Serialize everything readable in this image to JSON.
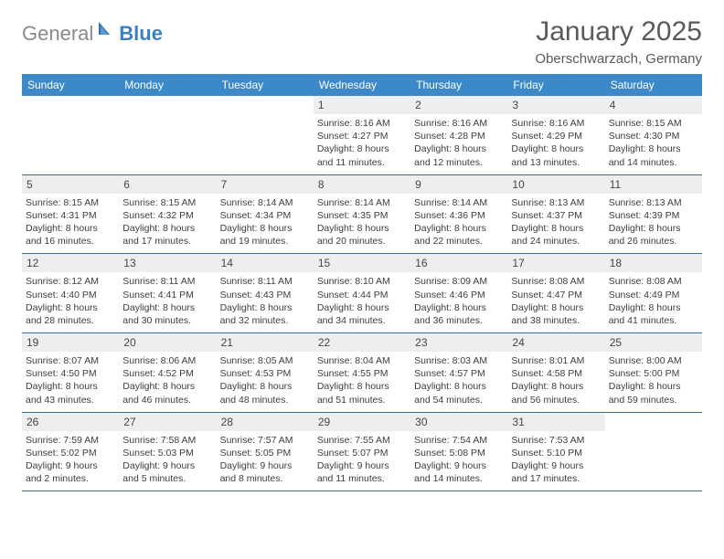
{
  "logo": {
    "text1": "General",
    "text2": "Blue"
  },
  "title": "January 2025",
  "subtitle": "Oberschwarzach, Germany",
  "colors": {
    "header_bg": "#3b89c9",
    "daynum_bg": "#eceeef",
    "row_border": "#3b6ea0",
    "logo_gray": "#8a8a8a",
    "logo_blue": "#3b7fc4"
  },
  "weekdays": [
    "Sunday",
    "Monday",
    "Tuesday",
    "Wednesday",
    "Thursday",
    "Friday",
    "Saturday"
  ],
  "weeks": [
    [
      {
        "n": "",
        "sr": "",
        "ss": "",
        "dl1": "",
        "dl2": ""
      },
      {
        "n": "",
        "sr": "",
        "ss": "",
        "dl1": "",
        "dl2": ""
      },
      {
        "n": "",
        "sr": "",
        "ss": "",
        "dl1": "",
        "dl2": ""
      },
      {
        "n": "1",
        "sr": "Sunrise: 8:16 AM",
        "ss": "Sunset: 4:27 PM",
        "dl1": "Daylight: 8 hours",
        "dl2": "and 11 minutes."
      },
      {
        "n": "2",
        "sr": "Sunrise: 8:16 AM",
        "ss": "Sunset: 4:28 PM",
        "dl1": "Daylight: 8 hours",
        "dl2": "and 12 minutes."
      },
      {
        "n": "3",
        "sr": "Sunrise: 8:16 AM",
        "ss": "Sunset: 4:29 PM",
        "dl1": "Daylight: 8 hours",
        "dl2": "and 13 minutes."
      },
      {
        "n": "4",
        "sr": "Sunrise: 8:15 AM",
        "ss": "Sunset: 4:30 PM",
        "dl1": "Daylight: 8 hours",
        "dl2": "and 14 minutes."
      }
    ],
    [
      {
        "n": "5",
        "sr": "Sunrise: 8:15 AM",
        "ss": "Sunset: 4:31 PM",
        "dl1": "Daylight: 8 hours",
        "dl2": "and 16 minutes."
      },
      {
        "n": "6",
        "sr": "Sunrise: 8:15 AM",
        "ss": "Sunset: 4:32 PM",
        "dl1": "Daylight: 8 hours",
        "dl2": "and 17 minutes."
      },
      {
        "n": "7",
        "sr": "Sunrise: 8:14 AM",
        "ss": "Sunset: 4:34 PM",
        "dl1": "Daylight: 8 hours",
        "dl2": "and 19 minutes."
      },
      {
        "n": "8",
        "sr": "Sunrise: 8:14 AM",
        "ss": "Sunset: 4:35 PM",
        "dl1": "Daylight: 8 hours",
        "dl2": "and 20 minutes."
      },
      {
        "n": "9",
        "sr": "Sunrise: 8:14 AM",
        "ss": "Sunset: 4:36 PM",
        "dl1": "Daylight: 8 hours",
        "dl2": "and 22 minutes."
      },
      {
        "n": "10",
        "sr": "Sunrise: 8:13 AM",
        "ss": "Sunset: 4:37 PM",
        "dl1": "Daylight: 8 hours",
        "dl2": "and 24 minutes."
      },
      {
        "n": "11",
        "sr": "Sunrise: 8:13 AM",
        "ss": "Sunset: 4:39 PM",
        "dl1": "Daylight: 8 hours",
        "dl2": "and 26 minutes."
      }
    ],
    [
      {
        "n": "12",
        "sr": "Sunrise: 8:12 AM",
        "ss": "Sunset: 4:40 PM",
        "dl1": "Daylight: 8 hours",
        "dl2": "and 28 minutes."
      },
      {
        "n": "13",
        "sr": "Sunrise: 8:11 AM",
        "ss": "Sunset: 4:41 PM",
        "dl1": "Daylight: 8 hours",
        "dl2": "and 30 minutes."
      },
      {
        "n": "14",
        "sr": "Sunrise: 8:11 AM",
        "ss": "Sunset: 4:43 PM",
        "dl1": "Daylight: 8 hours",
        "dl2": "and 32 minutes."
      },
      {
        "n": "15",
        "sr": "Sunrise: 8:10 AM",
        "ss": "Sunset: 4:44 PM",
        "dl1": "Daylight: 8 hours",
        "dl2": "and 34 minutes."
      },
      {
        "n": "16",
        "sr": "Sunrise: 8:09 AM",
        "ss": "Sunset: 4:46 PM",
        "dl1": "Daylight: 8 hours",
        "dl2": "and 36 minutes."
      },
      {
        "n": "17",
        "sr": "Sunrise: 8:08 AM",
        "ss": "Sunset: 4:47 PM",
        "dl1": "Daylight: 8 hours",
        "dl2": "and 38 minutes."
      },
      {
        "n": "18",
        "sr": "Sunrise: 8:08 AM",
        "ss": "Sunset: 4:49 PM",
        "dl1": "Daylight: 8 hours",
        "dl2": "and 41 minutes."
      }
    ],
    [
      {
        "n": "19",
        "sr": "Sunrise: 8:07 AM",
        "ss": "Sunset: 4:50 PM",
        "dl1": "Daylight: 8 hours",
        "dl2": "and 43 minutes."
      },
      {
        "n": "20",
        "sr": "Sunrise: 8:06 AM",
        "ss": "Sunset: 4:52 PM",
        "dl1": "Daylight: 8 hours",
        "dl2": "and 46 minutes."
      },
      {
        "n": "21",
        "sr": "Sunrise: 8:05 AM",
        "ss": "Sunset: 4:53 PM",
        "dl1": "Daylight: 8 hours",
        "dl2": "and 48 minutes."
      },
      {
        "n": "22",
        "sr": "Sunrise: 8:04 AM",
        "ss": "Sunset: 4:55 PM",
        "dl1": "Daylight: 8 hours",
        "dl2": "and 51 minutes."
      },
      {
        "n": "23",
        "sr": "Sunrise: 8:03 AM",
        "ss": "Sunset: 4:57 PM",
        "dl1": "Daylight: 8 hours",
        "dl2": "and 54 minutes."
      },
      {
        "n": "24",
        "sr": "Sunrise: 8:01 AM",
        "ss": "Sunset: 4:58 PM",
        "dl1": "Daylight: 8 hours",
        "dl2": "and 56 minutes."
      },
      {
        "n": "25",
        "sr": "Sunrise: 8:00 AM",
        "ss": "Sunset: 5:00 PM",
        "dl1": "Daylight: 8 hours",
        "dl2": "and 59 minutes."
      }
    ],
    [
      {
        "n": "26",
        "sr": "Sunrise: 7:59 AM",
        "ss": "Sunset: 5:02 PM",
        "dl1": "Daylight: 9 hours",
        "dl2": "and 2 minutes."
      },
      {
        "n": "27",
        "sr": "Sunrise: 7:58 AM",
        "ss": "Sunset: 5:03 PM",
        "dl1": "Daylight: 9 hours",
        "dl2": "and 5 minutes."
      },
      {
        "n": "28",
        "sr": "Sunrise: 7:57 AM",
        "ss": "Sunset: 5:05 PM",
        "dl1": "Daylight: 9 hours",
        "dl2": "and 8 minutes."
      },
      {
        "n": "29",
        "sr": "Sunrise: 7:55 AM",
        "ss": "Sunset: 5:07 PM",
        "dl1": "Daylight: 9 hours",
        "dl2": "and 11 minutes."
      },
      {
        "n": "30",
        "sr": "Sunrise: 7:54 AM",
        "ss": "Sunset: 5:08 PM",
        "dl1": "Daylight: 9 hours",
        "dl2": "and 14 minutes."
      },
      {
        "n": "31",
        "sr": "Sunrise: 7:53 AM",
        "ss": "Sunset: 5:10 PM",
        "dl1": "Daylight: 9 hours",
        "dl2": "and 17 minutes."
      },
      {
        "n": "",
        "sr": "",
        "ss": "",
        "dl1": "",
        "dl2": ""
      }
    ]
  ]
}
